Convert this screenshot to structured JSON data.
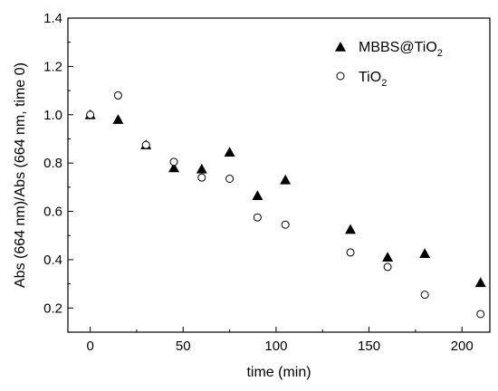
{
  "chart_data": {
    "type": "scatter",
    "xlabel": "time (min)",
    "ylabel": "Abs (664 nm)/Abs (664 nm, time 0)",
    "xlim": [
      -12,
      215
    ],
    "ylim": [
      0.1,
      1.4
    ],
    "xticks": [
      0,
      50,
      100,
      150,
      200
    ],
    "yticks": [
      0.2,
      0.4,
      0.6,
      0.8,
      1.0,
      1.2,
      1.4
    ],
    "ytick_labels": [
      "0.2",
      "0.4",
      "0.6",
      "0.8",
      "1.0",
      "1.2",
      "1.4"
    ],
    "legend_position": "top-right",
    "series": [
      {
        "name": "MBBS@TiO2",
        "label_main": "MBBS@TiO",
        "label_sub": "2",
        "marker": "filled-triangle",
        "color": "#000000",
        "x": [
          0,
          15,
          30,
          45,
          60,
          75,
          90,
          105,
          140,
          160,
          180,
          210
        ],
        "y": [
          1.0,
          0.98,
          0.875,
          0.78,
          0.775,
          0.845,
          0.665,
          0.73,
          0.525,
          0.41,
          0.425,
          0.305
        ]
      },
      {
        "name": "TiO2",
        "label_main": "TiO",
        "label_sub": "2",
        "marker": "open-circle",
        "color": "#000000",
        "x": [
          0,
          15,
          30,
          45,
          60,
          75,
          90,
          105,
          140,
          160,
          180,
          210
        ],
        "y": [
          1.0,
          1.08,
          0.875,
          0.805,
          0.74,
          0.735,
          0.575,
          0.545,
          0.43,
          0.37,
          0.255,
          0.175
        ]
      }
    ]
  }
}
